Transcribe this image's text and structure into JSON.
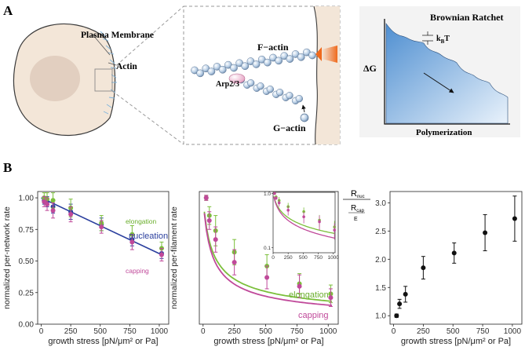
{
  "panel_a": {
    "letter": "A",
    "cell": {
      "membrane_label": "Plasma Membrane",
      "actin_label": "Actin"
    },
    "zoom": {
      "factin_label": "F−actin",
      "arp_label": "Arp2/3",
      "gactin_label": "G−actin"
    },
    "ratchet": {
      "title": "Brownian Ratchet",
      "kbt_label": "k",
      "kbt_sub": "B",
      "kbt_tail": "T",
      "ylabel": "ΔG",
      "xlabel": "Polymerization"
    }
  },
  "panel_b": {
    "letter": "B"
  },
  "chart_data": [
    {
      "type": "scatter",
      "name": "per-network rate",
      "xlabel": "growth stress [pN/μm² or Pa]",
      "ylabel": "normalized per-network rate",
      "xlim": [
        -30,
        1080
      ],
      "ylim": [
        0,
        1.05
      ],
      "xticks": [
        0,
        250,
        500,
        750,
        1000
      ],
      "yticks": [
        0.0,
        0.25,
        0.5,
        0.75,
        1.0
      ],
      "ytick_labels": [
        "0.00",
        "0.25",
        "0.50",
        "0.75",
        "1.00"
      ],
      "series": [
        {
          "name": "nucleation",
          "color": "#2b3f9e",
          "x": [
            25,
            50,
            100,
            250,
            510,
            770,
            1020
          ],
          "y": [
            0.98,
            0.97,
            0.93,
            0.89,
            0.79,
            0.67,
            0.56
          ],
          "err": [
            0.03,
            0.04,
            0.05,
            0.06,
            0.05,
            0.05,
            0.04
          ],
          "fit": [
            [
              0,
              1.0
            ],
            [
              1020,
              0.55
            ]
          ]
        },
        {
          "name": "elongation",
          "color": "#7bbf3a",
          "x": [
            25,
            50,
            100,
            250,
            510,
            770,
            1020
          ],
          "y": [
            1.0,
            0.99,
            0.98,
            0.92,
            0.8,
            0.71,
            0.6
          ],
          "err": [
            0.04,
            0.05,
            0.06,
            0.07,
            0.06,
            0.07,
            0.05
          ]
        },
        {
          "name": "capping",
          "color": "#c0499a",
          "x": [
            25,
            50,
            100,
            250,
            510,
            770,
            1020
          ],
          "y": [
            0.97,
            0.95,
            0.9,
            0.87,
            0.77,
            0.65,
            0.55
          ],
          "err": [
            0.04,
            0.05,
            0.06,
            0.06,
            0.05,
            0.06,
            0.05
          ]
        }
      ],
      "legend": {
        "nucleation": "nucleation",
        "elongation": "elongation",
        "capping": "capping"
      }
    },
    {
      "type": "scatter",
      "name": "per-filament rate",
      "xlabel": "growth stress [pN/μm² or Pa]",
      "ylabel": "normalized per-filament rate",
      "xlim": [
        -30,
        1080
      ],
      "ylim": [
        0,
        1.05
      ],
      "xticks": [
        0,
        250,
        500,
        750,
        1000
      ],
      "series": [
        {
          "name": "elongation",
          "color": "#7bbf3a",
          "x": [
            25,
            50,
            100,
            250,
            510,
            770,
            1020
          ],
          "y": [
            1.0,
            0.86,
            0.74,
            0.57,
            0.46,
            0.32,
            0.24
          ],
          "err": [
            0.02,
            0.07,
            0.12,
            0.1,
            0.09,
            0.08,
            0.07
          ]
        },
        {
          "name": "capping",
          "color": "#c0499a",
          "x": [
            25,
            50,
            100,
            250,
            510,
            770,
            1020
          ],
          "y": [
            1.0,
            0.82,
            0.67,
            0.49,
            0.37,
            0.3,
            0.21
          ],
          "err": [
            0.02,
            0.07,
            0.1,
            0.1,
            0.09,
            0.09,
            0.07
          ]
        }
      ],
      "legend": {
        "elongation": "elongation",
        "capping": "capping"
      },
      "inset": {
        "type": "line",
        "yscale": "log",
        "xlim": [
          0,
          1030
        ],
        "ylim": [
          0.1,
          1.0
        ],
        "xticks": [
          0,
          250,
          500,
          750,
          1000
        ],
        "ytick_labels": [
          "0.1",
          "1.0"
        ]
      }
    },
    {
      "type": "scatter",
      "name": "ratio",
      "xlabel": "growth stress [pN/μm² or Pa]",
      "ylabel_num": "R",
      "ylabel_num_sub": "nuc",
      "ylabel_den": "R",
      "ylabel_den_sub": "cap",
      "ylabel_den_bottom": "E",
      "xlim": [
        -30,
        1080
      ],
      "ylim": [
        0.85,
        3.2
      ],
      "xticks": [
        0,
        250,
        500,
        750,
        1000
      ],
      "yticks": [
        1.0,
        1.5,
        2.0,
        2.5,
        3.0
      ],
      "ytick_labels": [
        "1.0",
        "1.5",
        "2.0",
        "2.5",
        "3.0"
      ],
      "series": [
        {
          "name": "ratio",
          "color": "#111111",
          "x": [
            25,
            50,
            100,
            250,
            510,
            770,
            1020
          ],
          "y": [
            1.0,
            1.21,
            1.38,
            1.85,
            2.11,
            2.47,
            2.72
          ],
          "err": [
            0.03,
            0.08,
            0.14,
            0.2,
            0.18,
            0.32,
            0.4
          ]
        }
      ]
    }
  ]
}
